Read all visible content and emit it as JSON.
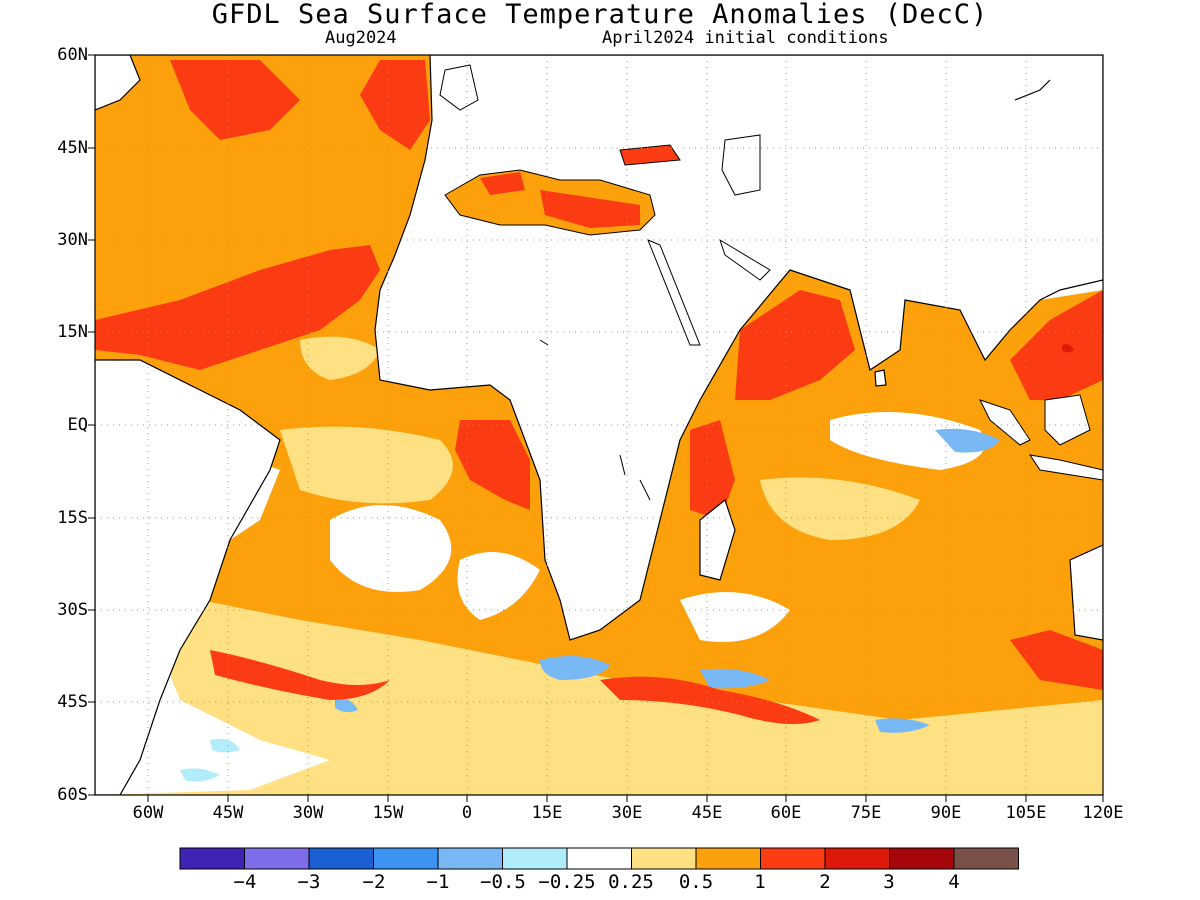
{
  "title": "GFDL Sea Surface Temperature Anomalies (DecC)",
  "subtitle_left": "Aug2024",
  "subtitle_right": "April2024 initial conditions",
  "lat_labels": [
    "60N",
    "45N",
    "30N",
    "15N",
    "EQ",
    "15S",
    "30S",
    "45S",
    "60S"
  ],
  "lon_labels": [
    "60W",
    "45W",
    "30W",
    "15W",
    "0",
    "15E",
    "30E",
    "45E",
    "60E",
    "75E",
    "90E",
    "105E",
    "120E"
  ],
  "colorbar": {
    "colors": [
      "#3f23b5",
      "#7d6de8",
      "#1b60d2",
      "#3d93f2",
      "#78b8f5",
      "#b1ecfa",
      "#ffffff",
      "#ffe082",
      "#fca10c",
      "#fb3c12",
      "#dd1909",
      "#a5060a",
      "#7a5148"
    ],
    "labels": [
      "−4",
      "−3",
      "−2",
      "−1",
      "−0.5",
      "−0.25",
      "0.25",
      "0.5",
      "1",
      "2",
      "3",
      "4"
    ]
  }
}
